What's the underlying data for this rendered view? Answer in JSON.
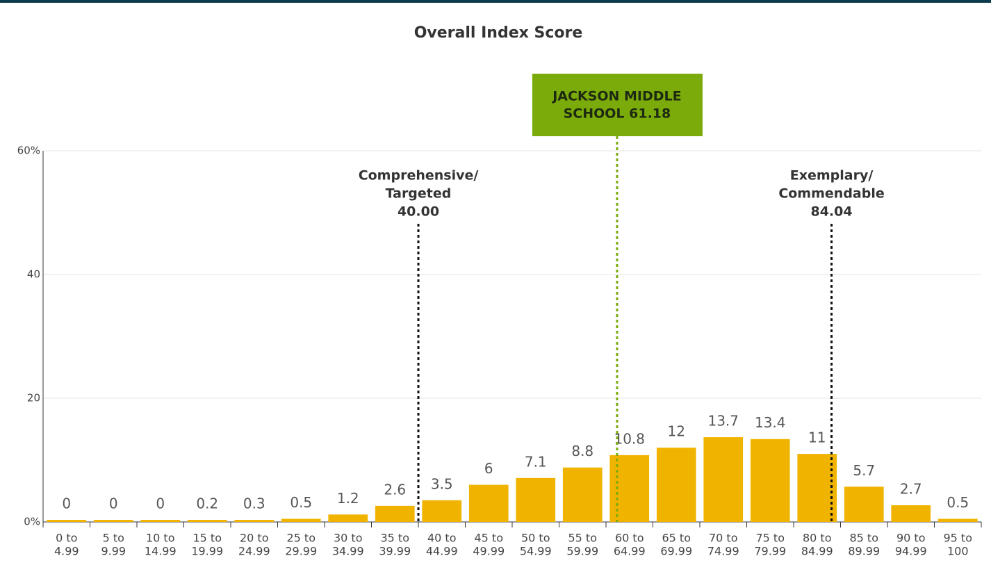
{
  "chart_data": {
    "type": "bar",
    "title": "Overall Index Score",
    "categories": [
      [
        "0 to",
        "4.99"
      ],
      [
        "5 to",
        "9.99"
      ],
      [
        "10 to",
        "14.99"
      ],
      [
        "15 to",
        "19.99"
      ],
      [
        "20 to",
        "24.99"
      ],
      [
        "25 to",
        "29.99"
      ],
      [
        "30 to",
        "34.99"
      ],
      [
        "35 to",
        "39.99"
      ],
      [
        "40 to",
        "44.99"
      ],
      [
        "45 to",
        "49.99"
      ],
      [
        "50 to",
        "54.99"
      ],
      [
        "55 to",
        "59.99"
      ],
      [
        "60 to",
        "64.99"
      ],
      [
        "65 to",
        "69.99"
      ],
      [
        "70 to",
        "74.99"
      ],
      [
        "75 to",
        "79.99"
      ],
      [
        "80 to",
        "84.99"
      ],
      [
        "85 to",
        "89.99"
      ],
      [
        "90 to",
        "94.99"
      ],
      [
        "95 to",
        "100"
      ]
    ],
    "values": [
      0,
      0,
      0,
      0.2,
      0.3,
      0.5,
      1.2,
      2.6,
      3.5,
      6,
      7.1,
      8.8,
      10.8,
      12,
      13.7,
      13.4,
      11,
      5.7,
      2.7,
      0.5
    ],
    "color": "#f0b400",
    "ylim": [
      0,
      60
    ],
    "yticks": [
      {
        "value": 0,
        "label": "0%"
      },
      20,
      40,
      {
        "value": 60,
        "label": "60%"
      }
    ],
    "xlim": [
      0,
      100
    ],
    "grid": true,
    "annotations": [
      {
        "x": 40,
        "value_label": "40.00",
        "text": [
          "Comprehensive/",
          "Targeted"
        ],
        "color": "#111111"
      },
      {
        "x": 84.04,
        "value_label": "84.04",
        "text": [
          "Exemplary/",
          "Commendable"
        ],
        "color": "#111111"
      },
      {
        "x": 61.18,
        "text": [
          "JACKSON MIDDLE",
          "SCHOOL 61.18"
        ],
        "color": "#7aab0b",
        "boxed": true
      }
    ]
  }
}
